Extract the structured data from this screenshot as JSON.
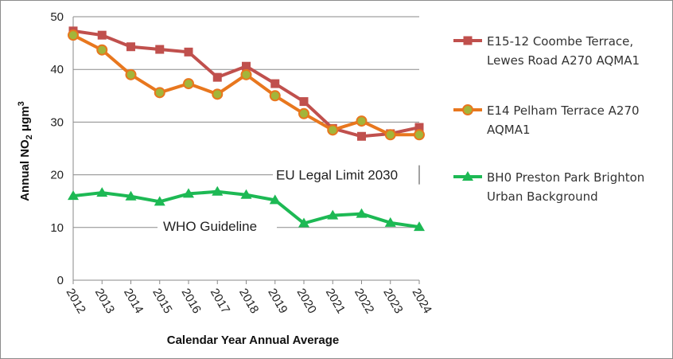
{
  "chart_data": {
    "type": "line",
    "title": "",
    "xlabel": "Calendar Year Annual Average",
    "ylabel": "Annual NO₂ μgm³",
    "ylabel_parts": {
      "main": "Annual NO",
      "sub": "2",
      "unit": " μgm",
      "sup": "3"
    },
    "ylim": [
      0,
      50
    ],
    "yticks": [
      0,
      10,
      20,
      30,
      40,
      50
    ],
    "grid": true,
    "legend_position": "right",
    "categories": [
      "2012",
      "2013",
      "2014",
      "2015",
      "2016",
      "2017",
      "2018",
      "2019",
      "2020",
      "2021",
      "2022",
      "2023",
      "2024"
    ],
    "series": [
      {
        "name": "E15-12 Coombe Terrace, Lewes Road A270 AQMA1",
        "legend_lines": [
          "E15-12 Coombe Terrace,",
          "Lewes Road A270 AQMA1"
        ],
        "color": "#c0504d",
        "marker": "square",
        "values": [
          47.3,
          46.5,
          44.3,
          43.8,
          43.3,
          38.5,
          40.6,
          37.3,
          33.9,
          28.8,
          27.3,
          27.8,
          29.0
        ]
      },
      {
        "name": "E14 Pelham Terrace A270 AQMA1",
        "legend_lines": [
          "E14 Pelham Terrace A270",
          "AQMA1"
        ],
        "color": "#e8771e",
        "marker_fill": "#a3b53a",
        "marker": "circle",
        "values": [
          46.5,
          43.7,
          39.0,
          35.6,
          37.3,
          35.3,
          39.0,
          35.0,
          31.6,
          28.5,
          30.2,
          27.6,
          27.6
        ]
      },
      {
        "name": "BH0 Preston Park Brighton Urban Background",
        "legend_lines": [
          "BH0 Preston Park Brighton",
          "Urban Background"
        ],
        "color": "#1db954",
        "marker": "triangle",
        "values": [
          16.0,
          16.6,
          15.9,
          14.9,
          16.4,
          16.8,
          16.2,
          15.2,
          10.8,
          12.3,
          12.6,
          10.9,
          10.1
        ]
      }
    ],
    "annotations": [
      {
        "text": "EU Legal Limit 2030",
        "y": 20
      },
      {
        "text": "WHO Guideline",
        "y": 10
      }
    ]
  }
}
